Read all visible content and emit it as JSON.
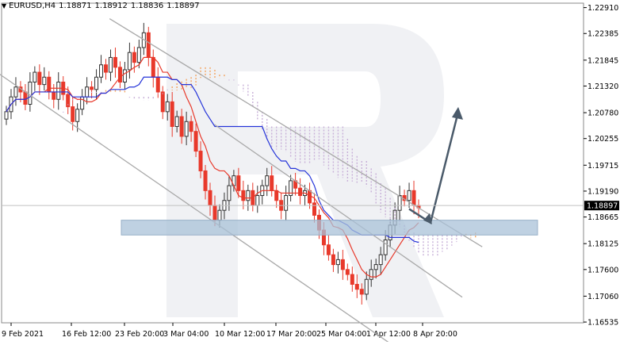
{
  "chart_header": {
    "symbol": "EURUSD,H4",
    "open": "1.18871",
    "high": "1.18912",
    "low": "1.18836",
    "close": "1.18897"
  },
  "colors": {
    "bull_candle": "#333333",
    "bear_candle": "#e8392b",
    "tenkan": "#e8392b",
    "kijun": "#2635d9",
    "cloud_bull": "#f4a460",
    "cloud_bear": "#c8b0d8",
    "trendline": "#a9a9a9",
    "support_zone": "#aac2d8",
    "forecast_arrow": "#4a5a6a",
    "price_tag_bg": "#000000"
  },
  "chart_data": {
    "type": "candlestick",
    "title": "",
    "xlabel": "",
    "ylabel": "",
    "ylim": [
      1.1652,
      1.23
    ],
    "y_ticks": [
      "1.22910",
      "1.22385",
      "1.21845",
      "1.21320",
      "1.20780",
      "1.20255",
      "1.19715",
      "1.19190",
      "1.18665",
      "1.18125",
      "1.17600",
      "1.17060",
      "1.16535"
    ],
    "x_ticks": [
      "9 Feb 2021",
      "16 Feb 12:00",
      "23 Feb 20:00",
      "3 Mar 04:00",
      "10 Mar 12:00",
      "17 Mar 20:00",
      "25 Mar 04:00",
      "1 Apr 12:00",
      "8 Apr 20:00"
    ],
    "current_price": "1.18897",
    "candle_closes": [
      1.208,
      1.211,
      1.213,
      1.212,
      1.2095,
      1.214,
      1.216,
      1.2135,
      1.215,
      1.212,
      1.2105,
      1.214,
      1.2115,
      1.209,
      1.206,
      1.2085,
      1.211,
      1.213,
      1.2125,
      1.215,
      1.2175,
      1.216,
      1.219,
      1.217,
      1.214,
      1.2165,
      1.22,
      1.218,
      1.221,
      1.224,
      1.219,
      1.215,
      1.212,
      1.208,
      1.21,
      1.205,
      1.207,
      1.203,
      1.206,
      1.204,
      1.2,
      1.196,
      1.192,
      1.189,
      1.186,
      1.188,
      1.19,
      1.193,
      1.195,
      1.192,
      1.19,
      1.192,
      1.189,
      1.191,
      1.193,
      1.195,
      1.192,
      1.19,
      1.188,
      1.191,
      1.194,
      1.1925,
      1.191,
      1.192,
      1.1895,
      1.187,
      1.184,
      1.181,
      1.179,
      1.177,
      1.178,
      1.176,
      1.175,
      1.173,
      1.172,
      1.171,
      1.174,
      1.176,
      1.177,
      1.179,
      1.182,
      1.185,
      1.188,
      1.191,
      1.19,
      1.192,
      1.189,
      1.1885
    ],
    "trendlines": [
      {
        "from": [
          "9 Feb 2021",
          1.214
        ],
        "to": [
          "25 Mar 04:00",
          1.17
        ]
      },
      {
        "from": [
          "23 Feb 20:00",
          1.225
        ],
        "to": [
          "8 Apr 20:00",
          1.188
        ]
      },
      {
        "from": [
          "10 Mar 12:00",
          1.204
        ],
        "to": [
          "8 Apr 20:00",
          1.176
        ]
      }
    ],
    "support_zone": [
      1.183,
      1.186
    ],
    "forecast": {
      "from": 1.187,
      "dip": 1.1855,
      "target": 1.208
    }
  }
}
